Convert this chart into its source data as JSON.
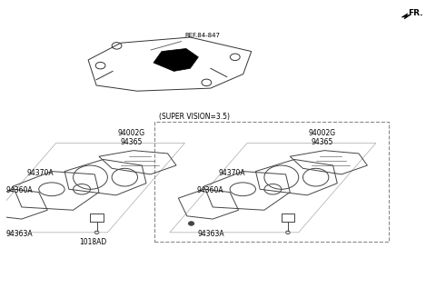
{
  "bg_color": "#ffffff",
  "fr_label": "FR.",
  "ref_label": "REF.84-847",
  "super_vision_label": "(SUPER VISION=3.5)",
  "line_color": "#555555",
  "text_color": "#000000",
  "font_size_labels": 5.5,
  "box_color": "#aaaaaa"
}
